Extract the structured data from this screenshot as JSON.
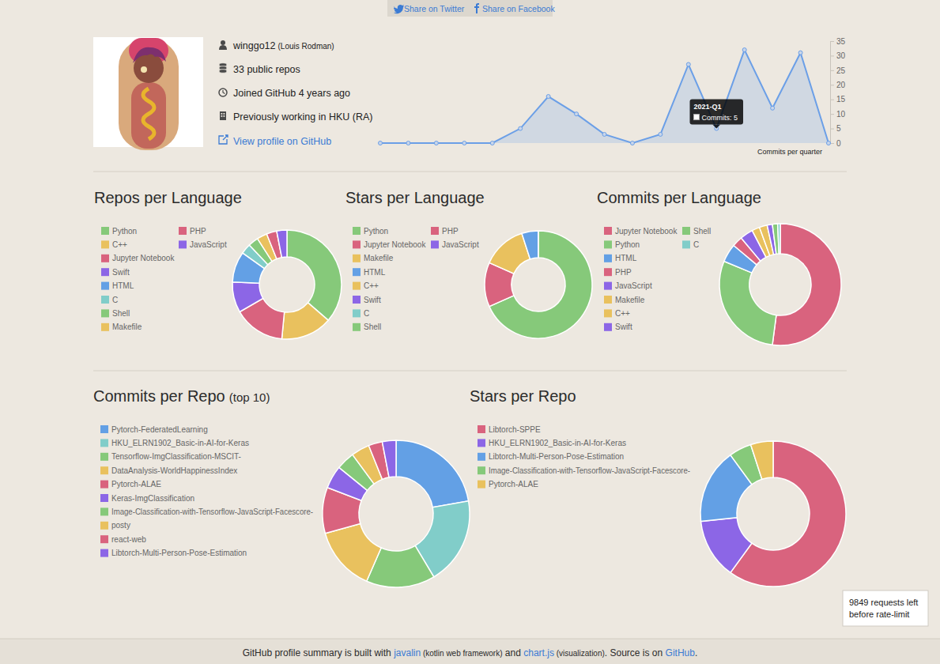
{
  "share": [
    "Share on Twitter",
    "Share on Facebook"
  ],
  "profile": {
    "username": "winggo12",
    "real_name": "(Louis Rodman)",
    "repos": "33 public repos",
    "joined": "Joined GitHub 4 years ago",
    "work": "Previously working in HKU (RA)",
    "link": "View profile on GitHub"
  },
  "chart_data": [
    {
      "type": "line",
      "x_label": "Commits per quarter",
      "categories": [
        null,
        null,
        null,
        null,
        null,
        null,
        null,
        null,
        null,
        null,
        null,
        null,
        "2021-Q1",
        null,
        null,
        null,
        null
      ],
      "values": [
        0,
        0,
        0,
        0,
        0,
        5,
        16,
        10,
        3,
        0,
        3,
        27,
        5,
        32,
        12,
        31,
        0
      ],
      "color": "#6b9fe7",
      "ylim": [
        0,
        35
      ],
      "yticks": [
        0,
        5,
        10,
        15,
        20,
        25,
        30,
        35
      ],
      "grid": false,
      "tick_labels": "y",
      "annotations": [
        {
          "x": "2021-Q1",
          "text": "Commits: 5"
        }
      ]
    },
    {
      "type": "doughnut",
      "title": "Repos per Language",
      "legend": "left",
      "categories": [
        "Python",
        "C++",
        "Jupyter Notebook",
        "Swift",
        "HTML",
        "C",
        "Shell",
        "Makefile",
        "PHP",
        "JavaScript"
      ],
      "values": [
        12,
        5,
        5,
        3,
        3,
        1,
        1,
        1,
        1,
        1
      ],
      "colors": [
        "#86c97a",
        "#e9c15e",
        "#d9637e",
        "#8c66e6",
        "#63a0e5",
        "#81cdc9",
        "#86c97a",
        "#e9c15e",
        "#d9637e",
        "#8c66e6"
      ]
    },
    {
      "type": "doughnut",
      "title": "Stars per Language",
      "legend": "left",
      "categories": [
        "Python",
        "Jupyter Notebook",
        "Makefile",
        "HTML",
        "C++",
        "Swift",
        "C",
        "Shell",
        "PHP",
        "JavaScript"
      ],
      "values": [
        41,
        8,
        8,
        3,
        0,
        0,
        0,
        0,
        0,
        0
      ],
      "colors": [
        "#86c97a",
        "#d9637e",
        "#e9c15e",
        "#63a0e5",
        "#e9c15e",
        "#8c66e6",
        "#81cdc9",
        "#86c97a",
        "#d9637e",
        "#8c66e6"
      ]
    },
    {
      "type": "doughnut",
      "title": "Commits per Language",
      "legend": "left",
      "categories": [
        "Jupyter Notebook",
        "Python",
        "HTML",
        "PHP",
        "JavaScript",
        "Makefile",
        "C++",
        "Swift",
        "Shell",
        "C"
      ],
      "values": [
        75,
        42,
        7,
        4,
        5,
        3,
        3,
        2,
        2,
        1
      ],
      "colors": [
        "#d9637e",
        "#86c97a",
        "#63a0e5",
        "#d9637e",
        "#8c66e6",
        "#e9c15e",
        "#e9c15e",
        "#8c66e6",
        "#86c97a",
        "#81cdc9"
      ]
    },
    {
      "type": "doughnut",
      "title": "Commits per Repo",
      "subtitle": "(top 10)",
      "legend": "left",
      "categories": [
        "Pytorch-FederatedLearning",
        "HKU_ELRN1902_Basic-in-AI-for-Keras",
        "Tensorflow-ImgClassification-MSCIT-",
        "DataAnalysis-WorldHappinessIndex",
        "Pytorch-ALAE",
        "Keras-ImgClassification",
        "Image-Classification-with-Tensorflow-JavaScript-Facescore-",
        "posty",
        "react-web",
        "Libtorch-Multi-Person-Pose-Estimation"
      ],
      "values": [
        22,
        19,
        15,
        14,
        10,
        5,
        4,
        4,
        3,
        3
      ],
      "colors": [
        "#63a0e5",
        "#81cdc9",
        "#86c97a",
        "#e9c15e",
        "#d9637e",
        "#8c66e6",
        "#86c97a",
        "#e9c15e",
        "#d9637e",
        "#8c66e6"
      ]
    },
    {
      "type": "doughnut",
      "title": "Stars per Repo",
      "legend": "left",
      "categories": [
        "Libtorch-SPPE",
        "HKU_ELRN1902_Basic-in-AI-for-Keras",
        "Libtorch-Multi-Person-Pose-Estimation",
        "Image-Classification-with-Tensorflow-JavaScript-Facescore-",
        "Pytorch-ALAE"
      ],
      "values": [
        36,
        8,
        10,
        3,
        3
      ],
      "colors": [
        "#d9637e",
        "#8c66e6",
        "#63a0e5",
        "#86c97a",
        "#e9c15e"
      ]
    }
  ],
  "rate_limit": {
    "remaining": 9849,
    "line1": "requests left",
    "line2": "before rate-limit"
  },
  "footer": [
    {
      "text": "GitHub profile summary is built with ",
      "kind": "plain"
    },
    {
      "text": "javalin",
      "kind": "link"
    },
    {
      "text": " (kotlin web framework)",
      "kind": "small"
    },
    {
      "text": " and ",
      "kind": "plain"
    },
    {
      "text": "chart.js",
      "kind": "link"
    },
    {
      "text": " (visualization)",
      "kind": "small"
    },
    {
      "text": ". Source is on ",
      "kind": "plain"
    },
    {
      "text": "GitHub",
      "kind": "link"
    },
    {
      "text": ".",
      "kind": "plain"
    }
  ]
}
